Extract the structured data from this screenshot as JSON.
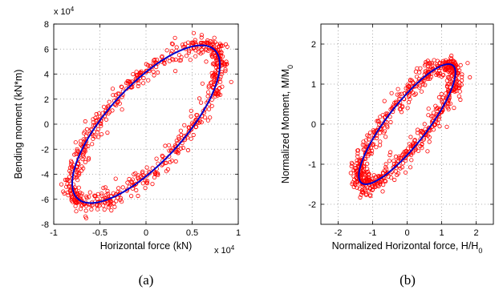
{
  "chart_data": [
    {
      "type": "scatter",
      "panel_caption": "(a)",
      "xlabel": "Horizontal force (kN)",
      "ylabel": "Bending moment (kN*m)",
      "x_multiplier_label": "x 10",
      "x_multiplier_exp": "4",
      "y_multiplier_label": "x 10",
      "y_multiplier_exp": "4",
      "xlim": [
        -1,
        1
      ],
      "ylim": [
        -8,
        8
      ],
      "xticks": [
        "-1",
        "-0.5",
        "0",
        "0.5",
        "1"
      ],
      "yticks": [
        "-8",
        "-6",
        "-4",
        "-2",
        "0",
        "2",
        "4",
        "6",
        "8"
      ],
      "grid": true,
      "colors": {
        "markers": "#ff0000",
        "curve": "#0000cc"
      },
      "series": [
        {
          "kind": "markers",
          "marker": "circle",
          "color": "#ff0000",
          "count": 700,
          "shape": "hysteresis loop around fitted ellipse"
        },
        {
          "kind": "ellipse",
          "color": "#0000cc",
          "rightmost_point": [
            0.8,
            6.0
          ],
          "leftmost_point": [
            -0.7,
            -6.0
          ],
          "top_point": [
            0.6,
            6.3
          ],
          "bottom_point": [
            -0.55,
            -6.3
          ],
          "width_through_zero": [
            -0.38,
            0.45
          ]
        }
      ]
    },
    {
      "type": "scatter",
      "panel_caption": "(b)",
      "xlabel": "Normalized Horizontal force,  H/H",
      "xlabel_sub": "0",
      "ylabel": "Normalized Moment, M/M",
      "ylabel_sub": "0",
      "xlim": [
        -2.5,
        2.5
      ],
      "ylim": [
        -2.5,
        2.5
      ],
      "xticks": [
        "-2",
        "-1",
        "0",
        "1",
        "2"
      ],
      "yticks": [
        "-2",
        "-1",
        "0",
        "1",
        "2"
      ],
      "grid": true,
      "colors": {
        "markers": "#ff0000",
        "curve": "#0000cc"
      },
      "series": [
        {
          "kind": "markers",
          "marker": "circle",
          "color": "#ff0000",
          "count": 700,
          "shape": "hysteresis loop around fitted ellipse"
        },
        {
          "kind": "ellipse",
          "color": "#0000cc",
          "rightmost_point": [
            1.4,
            1.45
          ],
          "leftmost_point": [
            -1.4,
            -1.45
          ],
          "top_point": [
            1.2,
            1.5
          ],
          "bottom_point": [
            -1.2,
            -1.5
          ],
          "width_through_zero": [
            -0.85,
            0.85
          ]
        }
      ]
    }
  ]
}
